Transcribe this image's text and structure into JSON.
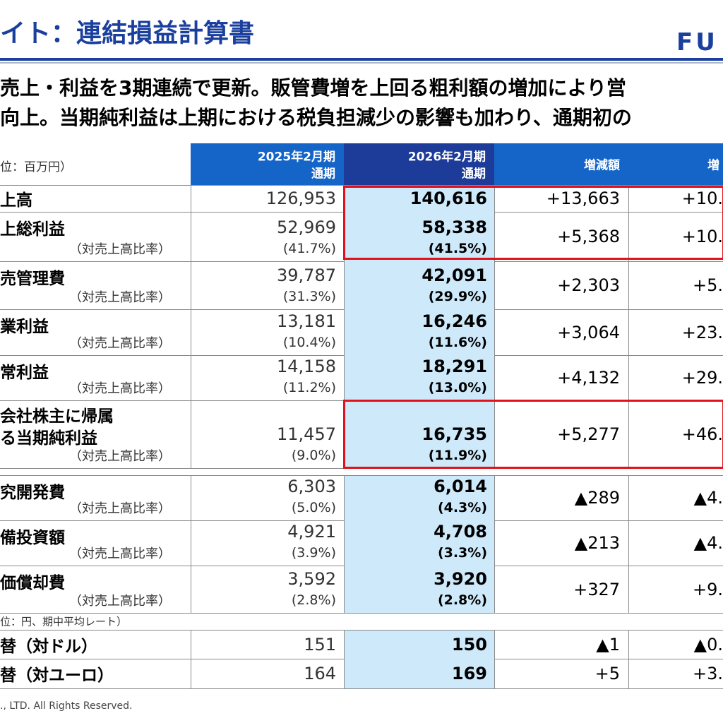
{
  "header": {
    "title": "イト：連結損益計算書",
    "logo": "FU"
  },
  "summary": [
    "売上・利益を3期連続で更新。販管費増を上回る粗利額の増加により営",
    "向上。当期純利益は上期における税負担減少の影響も加わり、通期初の"
  ],
  "table": {
    "unit_note": "位：百万円）",
    "columns": [
      [
        "2025年2月期",
        "通期"
      ],
      [
        "2026年2月期",
        "通期"
      ],
      [
        "増減額"
      ],
      [
        "増"
      ]
    ],
    "rows": [
      {
        "label": [
          "上高"
        ],
        "prior": "126,953",
        "current": "140,616",
        "change": "+13,663",
        "rate": "+10."
      },
      {
        "label": [
          "上総利益"
        ],
        "ratio_label": "（対売上高比率）",
        "prior": "52,969",
        "prior_ratio": "(41.7%)",
        "current": "58,338",
        "current_ratio": "(41.5%)",
        "change": "+5,368",
        "rate": "+10."
      },
      {
        "label": [
          "売管理費"
        ],
        "ratio_label": "（対売上高比率）",
        "prior": "39,787",
        "prior_ratio": "(31.3%)",
        "current": "42,091",
        "current_ratio": "(29.9%)",
        "change": "+2,303",
        "rate": "+5."
      },
      {
        "label": [
          "業利益"
        ],
        "ratio_label": "（対売上高比率）",
        "prior": "13,181",
        "prior_ratio": "(10.4%)",
        "current": "16,246",
        "current_ratio": "(11.6%)",
        "change": "+3,064",
        "rate": "+23."
      },
      {
        "label": [
          "常利益"
        ],
        "ratio_label": "（対売上高比率）",
        "prior": "14,158",
        "prior_ratio": "(11.2%)",
        "current": "18,291",
        "current_ratio": "(13.0%)",
        "change": "+4,132",
        "rate": "+29."
      },
      {
        "label": [
          "会社株主に帰属",
          "る当期純利益"
        ],
        "ratio_label": "（対売上高比率）",
        "prior": "11,457",
        "prior_ratio": "(9.0%)",
        "current": "16,735",
        "current_ratio": "(11.9%)",
        "change": "+5,277",
        "rate": "+46."
      },
      {
        "label": [
          "究開発費"
        ],
        "ratio_label": "（対売上高比率）",
        "prior": "6,303",
        "prior_ratio": "(5.0%)",
        "current": "6,014",
        "current_ratio": "(4.3%)",
        "change": "▲289",
        "rate": "▲4."
      },
      {
        "label": [
          "備投資額"
        ],
        "ratio_label": "（対売上高比率）",
        "prior": "4,921",
        "prior_ratio": "(3.9%)",
        "current": "4,708",
        "current_ratio": "(3.3%)",
        "change": "▲213",
        "rate": "▲4."
      },
      {
        "label": [
          "価償却費"
        ],
        "ratio_label": "（対売上高比率）",
        "prior": "3,592",
        "prior_ratio": "(2.8%)",
        "current": "3,920",
        "current_ratio": "(2.8%)",
        "change": "+327",
        "rate": "+9."
      }
    ],
    "fx_note": "位：円、期中平均レート）",
    "fx_rows": [
      {
        "label": [
          "替（対ドル）"
        ],
        "prior": "151",
        "current": "150",
        "change": "▲1",
        "rate": "▲0."
      },
      {
        "label": [
          "替（対ユーロ）"
        ],
        "prior": "164",
        "current": "169",
        "change": "+5",
        "rate": "+3."
      }
    ]
  },
  "footer": "., LTD. All Rights Reserved."
}
